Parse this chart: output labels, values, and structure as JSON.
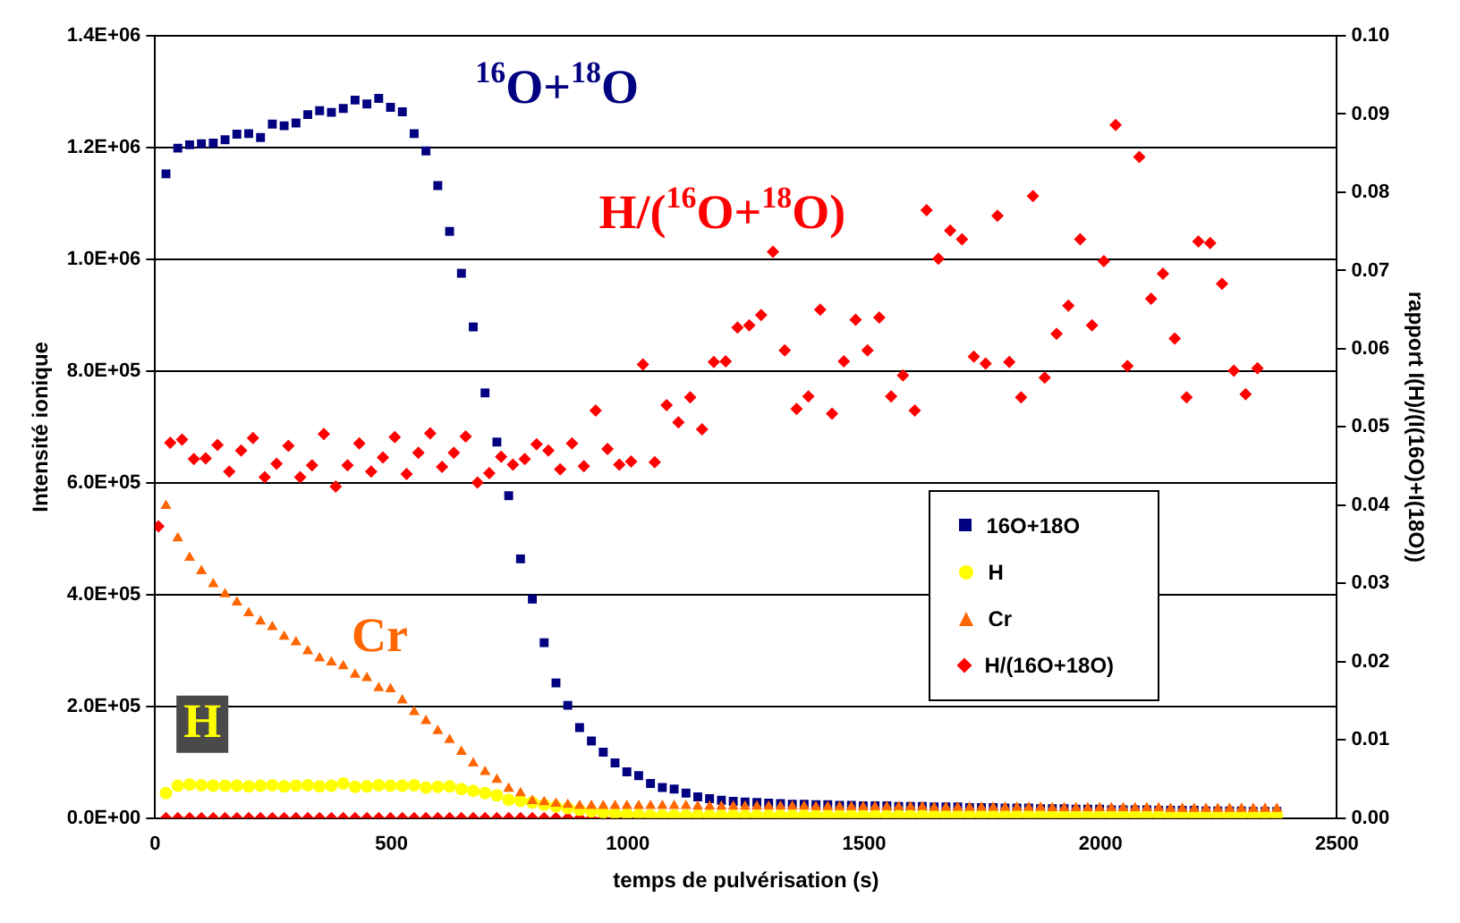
{
  "chart_data": {
    "type": "scatter",
    "xlabel": "temps de pulvérisation (s)",
    "ylabel": "Intensité ionique",
    "y2label": "rapport I(H)/(I(16O)+I(18O))",
    "x": [
      23,
      48,
      73,
      98,
      123,
      148,
      173,
      198,
      223,
      248,
      273,
      298,
      323,
      348,
      373,
      398,
      423,
      448,
      473,
      498,
      523,
      548,
      573,
      598,
      623,
      648,
      673,
      698,
      723,
      748,
      773,
      798,
      823,
      848,
      873,
      898,
      923,
      948,
      973,
      998,
      1023,
      1048,
      1073,
      1098,
      1123,
      1148,
      1173,
      1198,
      1223,
      1248,
      1273,
      1298,
      1323,
      1348,
      1373,
      1398,
      1423,
      1448,
      1473,
      1498,
      1523,
      1548,
      1573,
      1598,
      1623,
      1648,
      1673,
      1698,
      1723,
      1748,
      1773,
      1798,
      1823,
      1848,
      1873,
      1898,
      1923,
      1948,
      1973,
      1998,
      2023,
      2048,
      2073,
      2098,
      2123,
      2148,
      2173,
      2198,
      2223,
      2248,
      2273,
      2298,
      2323,
      2348,
      2373
    ],
    "xlim": [
      0,
      2500
    ],
    "xticks": [
      0,
      500,
      1000,
      1500,
      2000,
      2500
    ],
    "ylim": [
      0,
      1400000
    ],
    "yticks": [
      {
        "value": 0,
        "label": "0.0E+00"
      },
      {
        "value": 200000,
        "label": "2.0E+05"
      },
      {
        "value": 400000,
        "label": "4.0E+05"
      },
      {
        "value": 600000,
        "label": "6.0E+05"
      },
      {
        "value": 800000,
        "label": "8.0E+05"
      },
      {
        "value": 1000000,
        "label": "1.0E+06"
      },
      {
        "value": 1200000,
        "label": "1.2E+06"
      },
      {
        "value": 1400000,
        "label": "1.4E+06"
      }
    ],
    "y2lim": [
      0,
      0.1
    ],
    "y2ticks": [
      {
        "value": 0,
        "label": "0.00"
      },
      {
        "value": 0.01,
        "label": "0.01"
      },
      {
        "value": 0.02,
        "label": "0.02"
      },
      {
        "value": 0.03,
        "label": "0.03"
      },
      {
        "value": 0.04,
        "label": "0.04"
      },
      {
        "value": 0.05,
        "label": "0.05"
      },
      {
        "value": 0.06,
        "label": "0.06"
      },
      {
        "value": 0.07,
        "label": "0.07"
      },
      {
        "value": 0.08,
        "label": "0.08"
      },
      {
        "value": 0.09,
        "label": "0.09"
      },
      {
        "value": 0.1,
        "label": "0.10"
      }
    ],
    "grid": "y",
    "legend": "right",
    "series": [
      {
        "name": "16O+18O",
        "color": "#000080",
        "marker": "square",
        "values": [
          1153000,
          1199000,
          1205000,
          1207000,
          1208000,
          1214000,
          1224000,
          1225000,
          1218000,
          1242000,
          1239000,
          1244000,
          1259000,
          1266000,
          1263000,
          1270000,
          1285000,
          1278000,
          1288000,
          1272000,
          1264000,
          1225000,
          1194000,
          1132000,
          1050000,
          975000,
          879000,
          761000,
          673000,
          577000,
          464000,
          392000,
          314000,
          242000,
          202000,
          162000,
          138000,
          118000,
          99000,
          83000,
          76000,
          62000,
          55000,
          52000,
          45000,
          38000,
          35000,
          32000,
          30000,
          29000,
          28000,
          27000,
          26000,
          25000,
          25000,
          24000,
          24000,
          23000,
          23000,
          22000,
          22000,
          22000,
          21000,
          21000,
          21000,
          20000,
          20000,
          20000,
          19000,
          19000,
          19000,
          18000,
          18000,
          18000,
          17000,
          17000,
          17000,
          16000,
          16000,
          16000,
          15000,
          15000,
          15000,
          15000,
          14000,
          14000,
          14000,
          14000,
          13000,
          13000,
          13000,
          13000,
          12000,
          12000,
          12000
        ]
      },
      {
        "name": "H",
        "color": "#ffff00",
        "marker": "circle",
        "values": [
          45000,
          58000,
          60000,
          59000,
          58000,
          58000,
          58000,
          57000,
          58000,
          59000,
          57000,
          58000,
          59000,
          57000,
          58000,
          62000,
          56000,
          57000,
          59000,
          58000,
          58000,
          59000,
          55000,
          56000,
          57000,
          52000,
          49000,
          45000,
          41000,
          33000,
          31000,
          28000,
          24000,
          21000,
          18000,
          15000,
          12000,
          10000,
          8000,
          7000,
          6000,
          5000,
          5000,
          5000,
          5000,
          5000,
          5000,
          5000,
          5000,
          5000,
          5000,
          5000,
          5000,
          5000,
          5000,
          5000,
          5000,
          5000,
          5000,
          5000,
          5000,
          5000,
          5000,
          5000,
          5000,
          5000,
          5000,
          5000,
          5000,
          5000,
          5000,
          5000,
          5000,
          5000,
          5000,
          5000,
          5000,
          5000,
          5000,
          5000,
          5000,
          5000,
          5000,
          5000,
          5000,
          5000,
          5000,
          5000,
          5000,
          5000,
          5000,
          5000,
          5000,
          5000,
          5000
        ]
      },
      {
        "name": "Cr",
        "color": "#ff6600",
        "marker": "triangle",
        "values": [
          559000,
          501000,
          466000,
          442000,
          419000,
          401000,
          386000,
          367000,
          352000,
          342000,
          325000,
          315000,
          299000,
          286000,
          279000,
          272000,
          257000,
          251000,
          233000,
          231000,
          211000,
          190000,
          174000,
          156000,
          140000,
          119000,
          98000,
          83000,
          69000,
          53000,
          45000,
          31000,
          29000,
          26000,
          24000,
          22000,
          22000,
          22000,
          22000,
          22000,
          22000,
          22000,
          22000,
          22000,
          22000,
          21000,
          21000,
          21000,
          21000,
          21000,
          21000,
          21000,
          21000,
          21000,
          21000,
          20000,
          20000,
          20000,
          20000,
          20000,
          20000,
          20000,
          20000,
          20000,
          20000,
          19000,
          19000,
          19000,
          19000,
          19000,
          19000,
          19000,
          19000,
          19000,
          19000,
          18000,
          18000,
          18000,
          18000,
          18000,
          18000,
          18000,
          18000,
          18000,
          18000,
          17000,
          17000,
          17000,
          17000,
          17000,
          17000,
          17000,
          17000,
          17000,
          17000
        ]
      },
      {
        "name": "H/(16O+18O)",
        "color": "#ff0000",
        "marker": "diamond",
        "axis": "y2",
        "x": [
          7,
          32,
          57,
          82,
          107,
          132,
          157,
          182,
          207,
          232,
          257,
          282,
          307,
          332,
          357,
          382,
          407,
          432,
          457,
          482,
          507,
          532,
          557,
          582,
          607,
          632,
          657,
          682,
          707,
          732,
          757,
          782,
          807,
          832,
          857,
          882,
          907,
          932,
          957,
          982,
          1007,
          1032,
          1057,
          1082,
          1107,
          1132,
          1157,
          1182,
          1207,
          1232,
          1257,
          1282,
          1307,
          1332,
          1357,
          1382,
          1407,
          1432,
          1457,
          1482,
          1507,
          1532,
          1557,
          1582,
          1607,
          1632,
          1657,
          1682,
          1707,
          1732,
          1757,
          1782,
          1807,
          1832,
          1857,
          1882,
          1907,
          1932,
          1957,
          1982,
          2007,
          2032,
          2057,
          2082,
          2107,
          2132,
          2157,
          2182,
          2207,
          2232,
          2257,
          2282,
          2307,
          2332
        ],
        "values": [
          0.0373,
          0.048,
          0.0484,
          0.0459,
          0.046,
          0.0477,
          0.0443,
          0.047,
          0.0486,
          0.0436,
          0.0453,
          0.0476,
          0.0436,
          0.0451,
          0.0491,
          0.0424,
          0.0451,
          0.0479,
          0.0443,
          0.0461,
          0.0487,
          0.044,
          0.0467,
          0.0492,
          0.0449,
          0.0467,
          0.0488,
          0.0429,
          0.0441,
          0.0462,
          0.0452,
          0.0459,
          0.0478,
          0.047,
          0.0446,
          0.0479,
          0.045,
          0.0521,
          0.0472,
          0.0452,
          0.0456,
          0.058,
          0.0455,
          0.0528,
          0.0506,
          0.0538,
          0.0497,
          0.0583,
          0.0584,
          0.0627,
          0.063,
          0.0643,
          0.0724,
          0.0598,
          0.0523,
          0.0539,
          0.065,
          0.0517,
          0.0584,
          0.0637,
          0.0598,
          0.064,
          0.0539,
          0.0566,
          0.0521,
          0.0777,
          0.0715,
          0.0751,
          0.074,
          0.059,
          0.0581,
          0.077,
          0.0583,
          0.0538,
          0.0795,
          0.0563,
          0.0619,
          0.0655,
          0.074,
          0.063,
          0.0712,
          0.0886,
          0.0578,
          0.0845,
          0.0664,
          0.0696,
          0.0613,
          0.0538,
          0.0737,
          0.0735,
          0.0683,
          0.0572,
          0.0542,
          0.0575
        ]
      },
      {
        "color": "#ff0000",
        "marker": "diamond",
        "values": [
          0,
          0,
          0,
          0,
          0,
          0,
          0,
          0,
          0,
          0,
          0,
          0,
          0,
          0,
          0,
          0,
          0,
          0,
          0,
          0,
          0,
          0,
          0,
          0,
          0,
          0,
          0,
          0,
          0,
          0,
          0,
          0,
          0,
          0,
          0,
          0,
          0,
          0,
          0,
          0,
          0,
          0,
          0,
          0,
          0,
          0,
          0,
          0,
          0,
          0,
          0,
          0,
          0,
          0,
          0,
          0,
          0,
          0,
          0,
          0,
          0,
          0,
          0,
          0,
          0,
          0,
          0,
          0,
          0,
          0,
          0,
          0,
          0,
          0,
          0,
          0,
          0,
          0,
          0,
          0,
          0,
          0,
          0,
          0,
          0,
          0,
          0,
          0,
          0,
          0,
          0,
          0,
          0,
          0,
          0
        ]
      }
    ],
    "annotations": [
      "$^{16}$O+$^{18}$O",
      "H",
      "Cr",
      "H/($^{16}$O+$^{18}$O)"
    ]
  }
}
